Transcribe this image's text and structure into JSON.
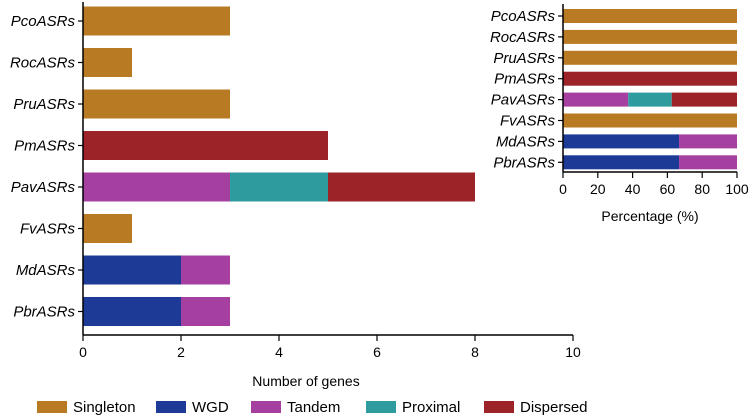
{
  "colors": {
    "Singleton": "#b97a24",
    "WGD": "#1c3a96",
    "Tandem": "#a540a0",
    "Proximal": "#2e9c9e",
    "Dispersed": "#9c2327"
  },
  "legend": [
    {
      "label": "Singleton",
      "key": "Singleton"
    },
    {
      "label": "WGD",
      "key": "WGD"
    },
    {
      "label": "Tandem",
      "key": "Tandem"
    },
    {
      "label": "Proximal",
      "key": "Proximal"
    },
    {
      "label": "Dispersed",
      "key": "Dispersed"
    }
  ],
  "chart_data": [
    {
      "type": "bar",
      "orientation": "horizontal",
      "stacked": true,
      "xlabel": "Number of genes",
      "xlim": [
        0,
        10
      ],
      "xticks": [
        0,
        2,
        4,
        6,
        8,
        10
      ],
      "categories": [
        "PcoASRs",
        "RocASRs",
        "PruASRs",
        "PmASRs",
        "PavASRs",
        "FvASRs",
        "MdASRs",
        "PbrASRs"
      ],
      "series": [
        {
          "name": "Singleton",
          "values": [
            3,
            1,
            3,
            0,
            0,
            1,
            0,
            0
          ]
        },
        {
          "name": "WGD",
          "values": [
            0,
            0,
            0,
            0,
            0,
            0,
            2,
            2
          ]
        },
        {
          "name": "Tandem",
          "values": [
            0,
            0,
            0,
            0,
            3,
            0,
            1,
            1
          ]
        },
        {
          "name": "Proximal",
          "values": [
            0,
            0,
            0,
            0,
            2,
            0,
            0,
            0
          ]
        },
        {
          "name": "Dispersed",
          "values": [
            0,
            0,
            0,
            5,
            3,
            0,
            0,
            0
          ]
        }
      ]
    },
    {
      "type": "bar",
      "orientation": "horizontal",
      "stacked": true,
      "xlabel": "Percentage (%)",
      "xlim": [
        0,
        100
      ],
      "xticks": [
        0,
        20,
        40,
        60,
        80,
        100
      ],
      "categories": [
        "PcoASRs",
        "RocASRs",
        "PruASRs",
        "PmASRs",
        "PavASRs",
        "FvASRs",
        "MdASRs",
        "PbrASRs"
      ],
      "series": [
        {
          "name": "Singleton",
          "values": [
            100,
            100,
            100,
            0,
            0,
            100,
            0,
            0
          ]
        },
        {
          "name": "WGD",
          "values": [
            0,
            0,
            0,
            0,
            0,
            0,
            66.7,
            66.7
          ]
        },
        {
          "name": "Tandem",
          "values": [
            0,
            0,
            0,
            0,
            37.5,
            0,
            33.3,
            33.3
          ]
        },
        {
          "name": "Proximal",
          "values": [
            0,
            0,
            0,
            0,
            25,
            0,
            0,
            0
          ]
        },
        {
          "name": "Dispersed",
          "values": [
            0,
            0,
            0,
            100,
            37.5,
            0,
            0,
            0
          ]
        }
      ]
    }
  ]
}
